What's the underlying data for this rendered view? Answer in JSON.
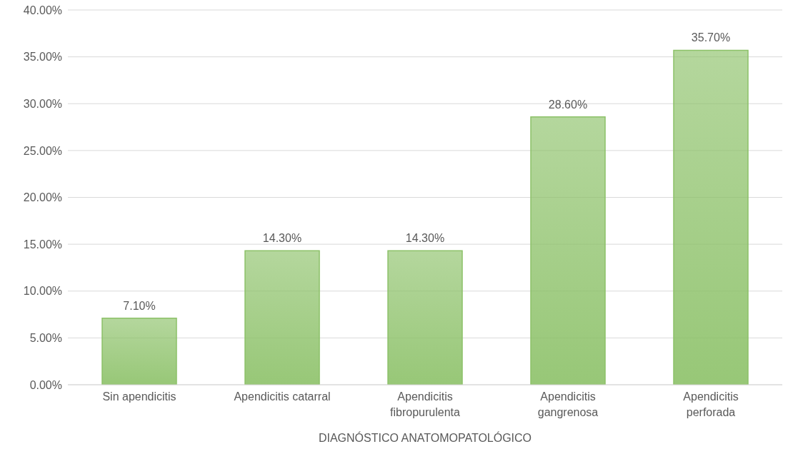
{
  "chart_data": {
    "type": "bar",
    "xlabel": "DIAGNÓSTICO ANATOMOPATOLÓGICO",
    "categories": [
      "Sin apendicitis",
      "Apendicitis catarral",
      "Apendicitis fibropurulenta",
      "Apendicitis gangrenosa",
      "Apendicitis perforada"
    ],
    "values": [
      7.1,
      14.3,
      14.3,
      28.6,
      35.7
    ],
    "value_labels": [
      "7.10%",
      "14.30%",
      "14.30%",
      "28.60%",
      "35.70%"
    ],
    "color": "#8cc168",
    "ylim": [
      0,
      40
    ],
    "yticks": [
      {
        "value": 0,
        "label": "0.00%"
      },
      {
        "value": 5,
        "label": "5.00%"
      },
      {
        "value": 10,
        "label": "10.00%"
      },
      {
        "value": 15,
        "label": "15.00%"
      },
      {
        "value": 20,
        "label": "20.00%"
      },
      {
        "value": 25,
        "label": "25.00%"
      },
      {
        "value": 30,
        "label": "30.00%"
      },
      {
        "value": 35,
        "label": "35.00%"
      },
      {
        "value": 40,
        "label": "40.00%"
      }
    ],
    "grid": "y"
  }
}
